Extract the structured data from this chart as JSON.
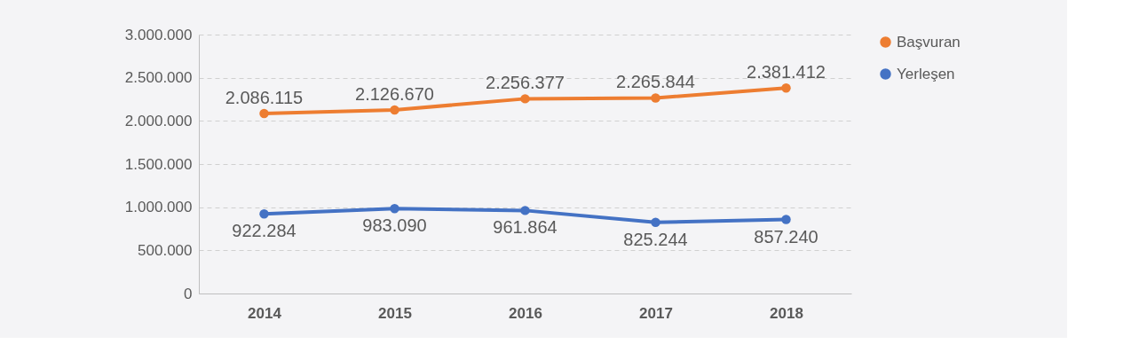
{
  "chart_data": {
    "type": "line",
    "categories": [
      "2014",
      "2015",
      "2016",
      "2017",
      "2018"
    ],
    "series": [
      {
        "name": "Başvuran",
        "color": "#ed7d31",
        "values": [
          2086115,
          2126670,
          2256377,
          2265844,
          2381412
        ],
        "value_labels": [
          "2.086.115",
          "2.126.670",
          "2.256.377",
          "2.265.844",
          "2.381.412"
        ]
      },
      {
        "name": "Yerleşen",
        "color": "#4472c4",
        "values": [
          922284,
          983090,
          961864,
          825244,
          857240
        ],
        "value_labels": [
          "922.284",
          "983.090",
          "961.864",
          "825.244",
          "857.240"
        ]
      }
    ],
    "ylim": [
      0,
      3000000
    ],
    "yticks": [
      {
        "value": 0,
        "label": "0"
      },
      {
        "value": 500000,
        "label": "500.000"
      },
      {
        "value": 1000000,
        "label": "1.000.000"
      },
      {
        "value": 1500000,
        "label": "1.500.000"
      },
      {
        "value": 2000000,
        "label": "2.000.000"
      },
      {
        "value": 2500000,
        "label": "2.500.000"
      },
      {
        "value": 3000000,
        "label": "3.000.000"
      }
    ],
    "grid": "y",
    "legend": "right",
    "marker": "circle",
    "line_style": "solid"
  }
}
